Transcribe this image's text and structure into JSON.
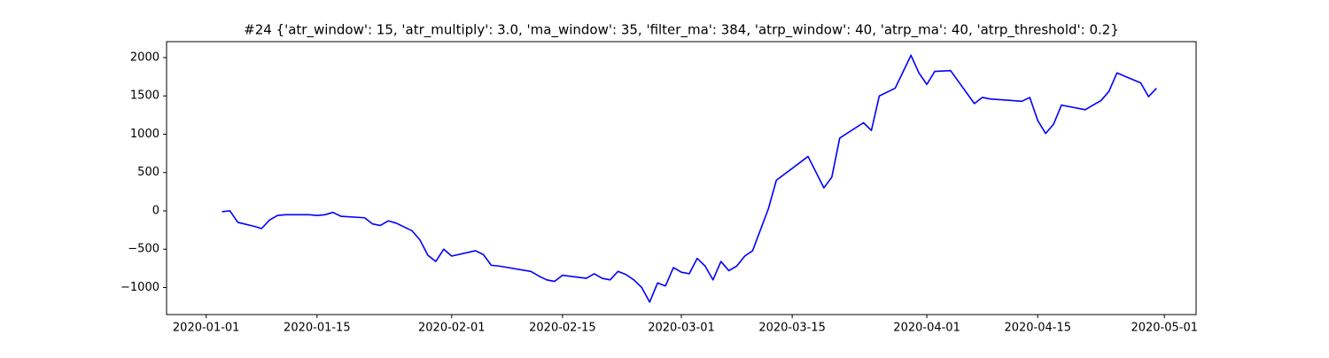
{
  "chart_data": {
    "type": "line",
    "title": "#24 {'atr_window': 15, 'atr_multiply': 3.0, 'ma_window': 35, 'filter_ma': 384, 'atrp_window': 40, 'atrp_ma': 40, 'atrp_threshold': 0.2}",
    "x": [
      "2020-01-03",
      "2020-01-04",
      "2020-01-05",
      "2020-01-07",
      "2020-01-08",
      "2020-01-09",
      "2020-01-10",
      "2020-01-11",
      "2020-01-14",
      "2020-01-15",
      "2020-01-16",
      "2020-01-17",
      "2020-01-18",
      "2020-01-21",
      "2020-01-22",
      "2020-01-23",
      "2020-01-24",
      "2020-01-25",
      "2020-01-27",
      "2020-01-28",
      "2020-01-29",
      "2020-01-30",
      "2020-01-31",
      "2020-02-01",
      "2020-02-04",
      "2020-02-05",
      "2020-02-06",
      "2020-02-07",
      "2020-02-11",
      "2020-02-12",
      "2020-02-13",
      "2020-02-14",
      "2020-02-15",
      "2020-02-18",
      "2020-02-19",
      "2020-02-20",
      "2020-02-21",
      "2020-02-22",
      "2020-02-23",
      "2020-02-24",
      "2020-02-25",
      "2020-02-26",
      "2020-02-27",
      "2020-02-28",
      "2020-02-29",
      "2020-03-01",
      "2020-03-02",
      "2020-03-03",
      "2020-03-04",
      "2020-03-05",
      "2020-03-06",
      "2020-03-07",
      "2020-03-08",
      "2020-03-09",
      "2020-03-10",
      "2020-03-12",
      "2020-03-13",
      "2020-03-17",
      "2020-03-19",
      "2020-03-20",
      "2020-03-21",
      "2020-03-24",
      "2020-03-25",
      "2020-03-26",
      "2020-03-28",
      "2020-03-30",
      "2020-03-31",
      "2020-04-01",
      "2020-04-02",
      "2020-04-04",
      "2020-04-07",
      "2020-04-08",
      "2020-04-09",
      "2020-04-13",
      "2020-04-14",
      "2020-04-15",
      "2020-04-16",
      "2020-04-17",
      "2020-04-18",
      "2020-04-21",
      "2020-04-22",
      "2020-04-23",
      "2020-04-24",
      "2020-04-25",
      "2020-04-28",
      "2020-04-29",
      "2020-04-30"
    ],
    "series": [
      {
        "color": "#0000ff",
        "values": [
          -10,
          0,
          -150,
          -200,
          -230,
          -120,
          -60,
          -50,
          -50,
          -60,
          -50,
          -20,
          -70,
          -90,
          -170,
          -190,
          -130,
          -160,
          -260,
          -380,
          -580,
          -660,
          -500,
          -590,
          -520,
          -570,
          -710,
          -720,
          -790,
          -850,
          -900,
          -920,
          -840,
          -880,
          -820,
          -880,
          -900,
          -790,
          -830,
          -900,
          -1000,
          -1190,
          -940,
          -980,
          -740,
          -800,
          -820,
          -620,
          -720,
          -900,
          -660,
          -780,
          -720,
          -590,
          -520,
          30,
          400,
          710,
          300,
          440,
          950,
          1150,
          1050,
          1500,
          1600,
          2030,
          1800,
          1650,
          1820,
          1830,
          1400,
          1480,
          1460,
          1430,
          1480,
          1180,
          1010,
          1130,
          1380,
          1320,
          1380,
          1440,
          1560,
          1800,
          1670,
          1490,
          1600
        ]
      }
    ],
    "xlim": [
      "2019-12-27",
      "2020-05-05"
    ],
    "xticks": [
      "2020-01-01",
      "2020-01-15",
      "2020-02-01",
      "2020-02-15",
      "2020-03-01",
      "2020-03-15",
      "2020-04-01",
      "2020-04-15",
      "2020-05-01"
    ],
    "ylim": [
      -1353,
      2208
    ],
    "yticks": [
      {
        "value": -1000,
        "label": "−1000"
      },
      {
        "value": -500,
        "label": "−500"
      },
      0,
      500,
      1000,
      1500,
      2000
    ]
  }
}
